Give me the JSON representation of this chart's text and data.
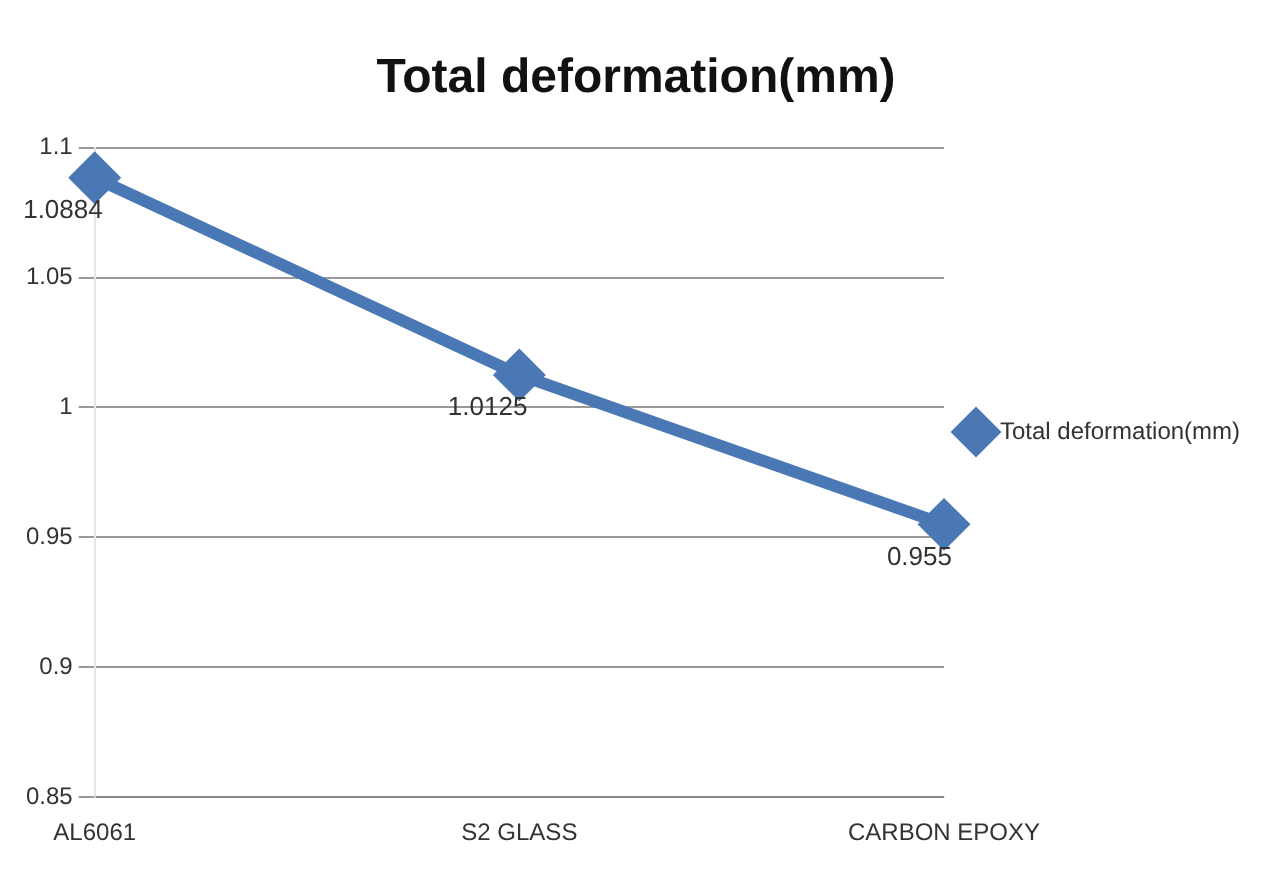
{
  "chart_data": {
    "type": "line",
    "title": "Total deformation(mm)",
    "categories": [
      "AL6061",
      "S2 GLASS",
      "CARBON EPOXY"
    ],
    "series": [
      {
        "name": "Total deformation(mm)",
        "color": "#4a78b4",
        "values": [
          1.0884,
          1.0125,
          0.955
        ]
      }
    ],
    "ylim": [
      0.85,
      1.1
    ],
    "yticks": [
      0.85,
      0.9,
      0.95,
      1,
      1.05,
      1.1
    ],
    "grid": "y",
    "legend": "right",
    "marker": "diamond",
    "line_style": "solid",
    "data_labels": true
  }
}
